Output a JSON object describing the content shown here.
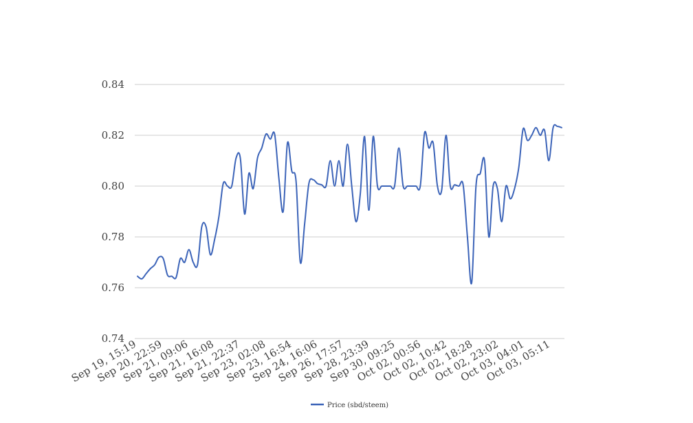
{
  "chart_data": {
    "type": "line",
    "title": "",
    "xlabel": "",
    "ylabel": "",
    "ylim": [
      0.74,
      0.84
    ],
    "yticks": [
      0.74,
      0.76,
      0.78,
      0.8,
      0.82,
      0.84
    ],
    "ytick_labels": [
      "0.74",
      "0.76",
      "0.78",
      "0.80",
      "0.82",
      "0.84"
    ],
    "xtick_labels": [
      "Sep 19, 15:19",
      "Sep 20, 22:59",
      "Sep 21, 09:06",
      "Sep 21, 16:08",
      "Sep 21, 22:37",
      "Sep 23, 02:08",
      "Sep 23, 16:54",
      "Sep 24, 16:06",
      "Sep 26, 17:57",
      "Sep 28, 23:39",
      "Sep 30, 09:25",
      "Oct 02, 00:56",
      "Oct 02, 10:42",
      "Oct 02, 18:28",
      "Oct 02, 23:02",
      "Oct 03, 04:01",
      "Oct 03, 05:11"
    ],
    "grid": true,
    "legend": "bottom",
    "colors": {
      "series": "#3b63b8",
      "grid": "#cccccc",
      "text": "#404040"
    },
    "series": [
      {
        "name": "Price (sbd/steem)",
        "values": [
          0.7645,
          0.7635,
          0.7655,
          0.7675,
          0.769,
          0.772,
          0.7715,
          0.765,
          0.7645,
          0.764,
          0.7715,
          0.77,
          0.775,
          0.77,
          0.769,
          0.784,
          0.784,
          0.773,
          0.779,
          0.788,
          0.801,
          0.8,
          0.8,
          0.811,
          0.811,
          0.789,
          0.805,
          0.799,
          0.811,
          0.815,
          0.8205,
          0.8185,
          0.8205,
          0.803,
          0.79,
          0.817,
          0.806,
          0.802,
          0.77,
          0.785,
          0.801,
          0.8025,
          0.801,
          0.8005,
          0.8,
          0.81,
          0.8,
          0.81,
          0.8,
          0.8165,
          0.8,
          0.786,
          0.797,
          0.8195,
          0.7905,
          0.8195,
          0.8,
          0.8,
          0.8,
          0.8,
          0.8,
          0.815,
          0.8,
          0.8,
          0.8,
          0.8,
          0.8,
          0.821,
          0.815,
          0.817,
          0.8,
          0.7985,
          0.82,
          0.8,
          0.8005,
          0.8,
          0.8005,
          0.78,
          0.762,
          0.8,
          0.805,
          0.81,
          0.78,
          0.8,
          0.799,
          0.786,
          0.8,
          0.795,
          0.799,
          0.8075,
          0.8225,
          0.818,
          0.82,
          0.823,
          0.82,
          0.822,
          0.81,
          0.823,
          0.8235,
          0.823
        ]
      }
    ]
  }
}
